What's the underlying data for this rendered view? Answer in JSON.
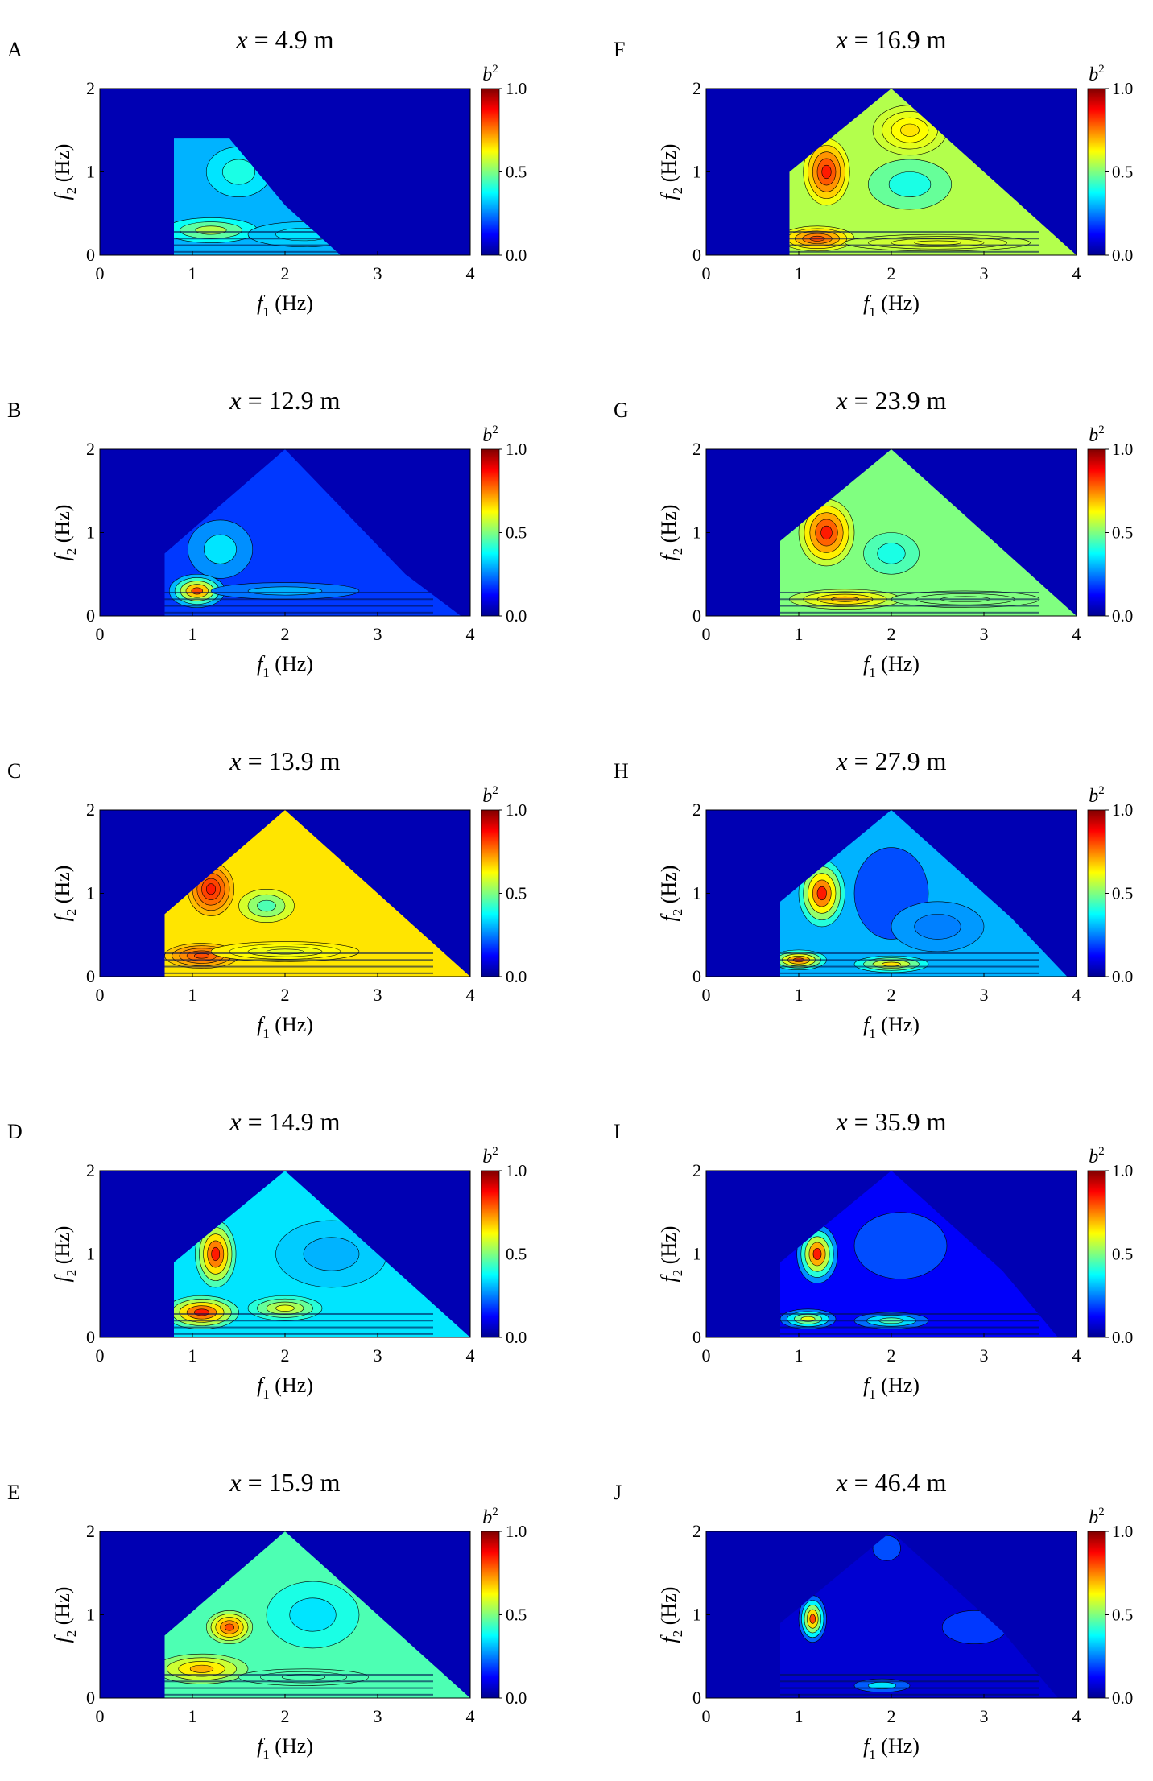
{
  "figure": {
    "xlabel": "f",
    "xlabel_sub": "1",
    "xlabel_unit": "(Hz)",
    "ylabel": "f",
    "ylabel_sub": "2",
    "ylabel_unit": "(Hz)",
    "colorbar_label": "b",
    "colorbar_label_sup": "2",
    "colormap": "jet",
    "title_var": "x",
    "title_eq": " = ",
    "title_unit": " m"
  },
  "chart_data": [
    {
      "type": "heatmap",
      "panel": "A",
      "x_m": "4.9",
      "xlim": [
        0,
        4
      ],
      "ylim": [
        0,
        2
      ],
      "xticks": [
        "0",
        "1",
        "2",
        "3",
        "4"
      ],
      "yticks": [
        "0",
        "1",
        "2"
      ],
      "clim": [
        0,
        1
      ],
      "cticks": [
        "0.0",
        "0.5",
        "1.0"
      ]
    },
    {
      "type": "heatmap",
      "panel": "B",
      "x_m": "12.9",
      "xlim": [
        0,
        4
      ],
      "ylim": [
        0,
        2
      ],
      "xticks": [
        "0",
        "1",
        "2",
        "3",
        "4"
      ],
      "yticks": [
        "0",
        "1",
        "2"
      ],
      "clim": [
        0,
        1
      ],
      "cticks": [
        "0.0",
        "0.5",
        "1.0"
      ]
    },
    {
      "type": "heatmap",
      "panel": "C",
      "x_m": "13.9",
      "xlim": [
        0,
        4
      ],
      "ylim": [
        0,
        2
      ],
      "xticks": [
        "0",
        "1",
        "2",
        "3",
        "4"
      ],
      "yticks": [
        "0",
        "1",
        "2"
      ],
      "clim": [
        0,
        1
      ],
      "cticks": [
        "0.0",
        "0.5",
        "1.0"
      ]
    },
    {
      "type": "heatmap",
      "panel": "D",
      "x_m": "14.9",
      "xlim": [
        0,
        4
      ],
      "ylim": [
        0,
        2
      ],
      "xticks": [
        "0",
        "1",
        "2",
        "3",
        "4"
      ],
      "yticks": [
        "0",
        "1",
        "2"
      ],
      "clim": [
        0,
        1
      ],
      "cticks": [
        "0.0",
        "0.5",
        "1.0"
      ]
    },
    {
      "type": "heatmap",
      "panel": "E",
      "x_m": "15.9",
      "xlim": [
        0,
        4
      ],
      "ylim": [
        0,
        2
      ],
      "xticks": [
        "0",
        "1",
        "2",
        "3",
        "4"
      ],
      "yticks": [
        "0",
        "1",
        "2"
      ],
      "clim": [
        0,
        1
      ],
      "cticks": [
        "0.0",
        "0.5",
        "1.0"
      ]
    },
    {
      "type": "heatmap",
      "panel": "F",
      "x_m": "16.9",
      "xlim": [
        0,
        4
      ],
      "ylim": [
        0,
        2
      ],
      "xticks": [
        "0",
        "1",
        "2",
        "3",
        "4"
      ],
      "yticks": [
        "0",
        "1",
        "2"
      ],
      "clim": [
        0,
        1
      ],
      "cticks": [
        "0.0",
        "0.5",
        "1.0"
      ]
    },
    {
      "type": "heatmap",
      "panel": "G",
      "x_m": "23.9",
      "xlim": [
        0,
        4
      ],
      "ylim": [
        0,
        2
      ],
      "xticks": [
        "0",
        "1",
        "2",
        "3",
        "4"
      ],
      "yticks": [
        "0",
        "1",
        "2"
      ],
      "clim": [
        0,
        1
      ],
      "cticks": [
        "0.0",
        "0.5",
        "1.0"
      ]
    },
    {
      "type": "heatmap",
      "panel": "H",
      "x_m": "27.9",
      "xlim": [
        0,
        4
      ],
      "ylim": [
        0,
        2
      ],
      "xticks": [
        "0",
        "1",
        "2",
        "3",
        "4"
      ],
      "yticks": [
        "0",
        "1",
        "2"
      ],
      "clim": [
        0,
        1
      ],
      "cticks": [
        "0.0",
        "0.5",
        "1.0"
      ]
    },
    {
      "type": "heatmap",
      "panel": "I",
      "x_m": "35.9",
      "xlim": [
        0,
        4
      ],
      "ylim": [
        0,
        2
      ],
      "xticks": [
        "0",
        "1",
        "2",
        "3",
        "4"
      ],
      "yticks": [
        "0",
        "1",
        "2"
      ],
      "clim": [
        0,
        1
      ],
      "cticks": [
        "0.0",
        "0.5",
        "1.0"
      ]
    },
    {
      "type": "heatmap",
      "panel": "J",
      "x_m": "46.4",
      "xlim": [
        0,
        4
      ],
      "ylim": [
        0,
        2
      ],
      "xticks": [
        "0",
        "1",
        "2",
        "3",
        "4"
      ],
      "yticks": [
        "0",
        "1",
        "2"
      ],
      "clim": [
        0,
        1
      ],
      "cticks": [
        "0.0",
        "0.5",
        "1.0"
      ]
    }
  ]
}
